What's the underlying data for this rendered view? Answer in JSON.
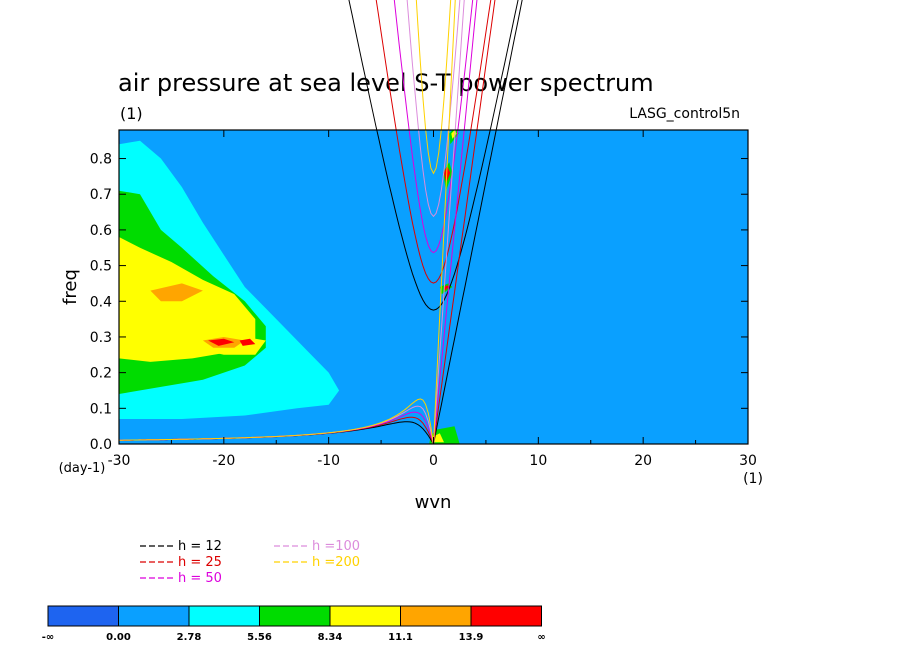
{
  "chart_data": {
    "type": "heatmap",
    "title": "air pressure at sea level S-T power spectrum",
    "subtitle": "(1)",
    "corner_label": "LASG_control5n",
    "xlabel": "wvn",
    "ylabel": "freq",
    "x_unit": "(1)",
    "y_unit": "(day-1)",
    "xlim": [
      -30,
      30
    ],
    "ylim": [
      0,
      0.88
    ],
    "x_ticks": [
      "-30",
      "-20",
      "-10",
      "0",
      "10",
      "20",
      "30"
    ],
    "x_tick_values": [
      -30,
      -20,
      -10,
      0,
      10,
      20,
      30
    ],
    "y_ticks": [
      "0.0",
      "0.1",
      "0.2",
      "0.3",
      "0.4",
      "0.5",
      "0.6",
      "0.7",
      "0.8"
    ],
    "y_tick_values": [
      0,
      0.1,
      0.2,
      0.3,
      0.4,
      0.5,
      0.6,
      0.7,
      0.8
    ],
    "background_color": "#0aa0ff",
    "colorbar": {
      "labels": [
        "-∞",
        "0.00",
        "2.78",
        "5.56",
        "8.34",
        "11.1",
        "13.9",
        "∞"
      ],
      "colors": [
        "#1e64f0",
        "#0aa0ff",
        "#00ffff",
        "#00dc00",
        "#ffff00",
        "#ffa500",
        "#ff0000"
      ]
    },
    "regions": [
      {
        "level": 2,
        "points": [
          [
            -30,
            0.07
          ],
          [
            -30,
            0.84
          ],
          [
            -28,
            0.85
          ],
          [
            -26,
            0.8
          ],
          [
            -24,
            0.72
          ],
          [
            -22,
            0.62
          ],
          [
            -20,
            0.53
          ],
          [
            -18,
            0.44
          ],
          [
            -16,
            0.38
          ],
          [
            -14,
            0.32
          ],
          [
            -12,
            0.26
          ],
          [
            -10,
            0.2
          ],
          [
            -9,
            0.15
          ],
          [
            -10,
            0.11
          ],
          [
            -13,
            0.1
          ],
          [
            -18,
            0.08
          ],
          [
            -24,
            0.07
          ]
        ]
      },
      {
        "level": 3,
        "points": [
          [
            -30,
            0.14
          ],
          [
            -30,
            0.71
          ],
          [
            -28,
            0.7
          ],
          [
            -26,
            0.6
          ],
          [
            -24,
            0.55
          ],
          [
            -21,
            0.47
          ],
          [
            -18,
            0.4
          ],
          [
            -16,
            0.33
          ],
          [
            -16,
            0.27
          ],
          [
            -18,
            0.22
          ],
          [
            -22,
            0.18
          ],
          [
            -26,
            0.16
          ]
        ]
      },
      {
        "level": 4,
        "points": [
          [
            -30,
            0.24
          ],
          [
            -30,
            0.58
          ],
          [
            -28,
            0.55
          ],
          [
            -25,
            0.51
          ],
          [
            -22,
            0.46
          ],
          [
            -19,
            0.42
          ],
          [
            -17,
            0.35
          ],
          [
            -17,
            0.29
          ],
          [
            -19,
            0.26
          ],
          [
            -23,
            0.24
          ],
          [
            -27,
            0.23
          ]
        ]
      },
      {
        "level": 4,
        "points": [
          [
            -24,
            0.32
          ],
          [
            -22,
            0.34
          ],
          [
            -20,
            0.32
          ],
          [
            -18,
            0.3
          ],
          [
            -16,
            0.29
          ],
          [
            -17,
            0.25
          ],
          [
            -20,
            0.25
          ],
          [
            -23,
            0.27
          ]
        ]
      },
      {
        "level": 5,
        "points": [
          [
            -27,
            0.43
          ],
          [
            -24,
            0.45
          ],
          [
            -22,
            0.43
          ],
          [
            -24,
            0.4
          ],
          [
            -26,
            0.4
          ]
        ]
      },
      {
        "level": 5,
        "points": [
          [
            -22,
            0.29
          ],
          [
            -20,
            0.3
          ],
          [
            -18,
            0.29
          ],
          [
            -19,
            0.27
          ],
          [
            -21,
            0.27
          ]
        ]
      },
      {
        "level": 6,
        "points": [
          [
            -21.5,
            0.29
          ],
          [
            -20,
            0.295
          ],
          [
            -19,
            0.285
          ],
          [
            -20.5,
            0.275
          ]
        ]
      },
      {
        "level": 6,
        "points": [
          [
            -18.5,
            0.29
          ],
          [
            -17.5,
            0.295
          ],
          [
            -17,
            0.28
          ],
          [
            -18.2,
            0.275
          ]
        ]
      },
      {
        "level": 3,
        "points": [
          [
            1.2,
            0.71
          ],
          [
            1.8,
            0.76
          ],
          [
            1.5,
            0.79
          ],
          [
            0.9,
            0.76
          ]
        ]
      },
      {
        "level": 6,
        "points": [
          [
            1.2,
            0.73
          ],
          [
            1.6,
            0.76
          ],
          [
            1.3,
            0.78
          ],
          [
            1.0,
            0.76
          ]
        ]
      },
      {
        "level": 3,
        "points": [
          [
            1.6,
            0.84
          ],
          [
            2.4,
            0.87
          ],
          [
            2.1,
            0.89
          ],
          [
            1.5,
            0.87
          ]
        ]
      },
      {
        "level": 4,
        "points": [
          [
            1.8,
            0.855
          ],
          [
            2.2,
            0.87
          ],
          [
            2.0,
            0.88
          ],
          [
            1.7,
            0.87
          ]
        ]
      },
      {
        "level": 3,
        "points": [
          [
            0.8,
            0.42
          ],
          [
            1.8,
            0.44
          ],
          [
            1.4,
            0.45
          ],
          [
            0.6,
            0.44
          ]
        ]
      },
      {
        "level": 6,
        "points": [
          [
            1.1,
            0.43
          ],
          [
            1.5,
            0.44
          ],
          [
            1.3,
            0.445
          ],
          [
            1.0,
            0.44
          ]
        ]
      },
      {
        "level": 3,
        "points": [
          [
            -0.4,
            0.0
          ],
          [
            2.5,
            0.0
          ],
          [
            2.0,
            0.05
          ],
          [
            0.2,
            0.04
          ],
          [
            -0.3,
            0.02
          ]
        ]
      },
      {
        "level": 4,
        "points": [
          [
            -0.2,
            0.005
          ],
          [
            1.0,
            0.005
          ],
          [
            0.6,
            0.03
          ],
          [
            -0.1,
            0.02
          ]
        ]
      }
    ],
    "series": [
      {
        "name": "h = 12",
        "color": "#000000",
        "h": 12
      },
      {
        "name": "h = 25",
        "color": "#dc0000",
        "h": 25
      },
      {
        "name": "h = 50",
        "color": "#dc00dc",
        "h": 50
      },
      {
        "name": "h =100",
        "color": "#dc8cdc",
        "h": 100
      },
      {
        "name": "h =200",
        "color": "#ffd200",
        "h": 200
      }
    ]
  }
}
